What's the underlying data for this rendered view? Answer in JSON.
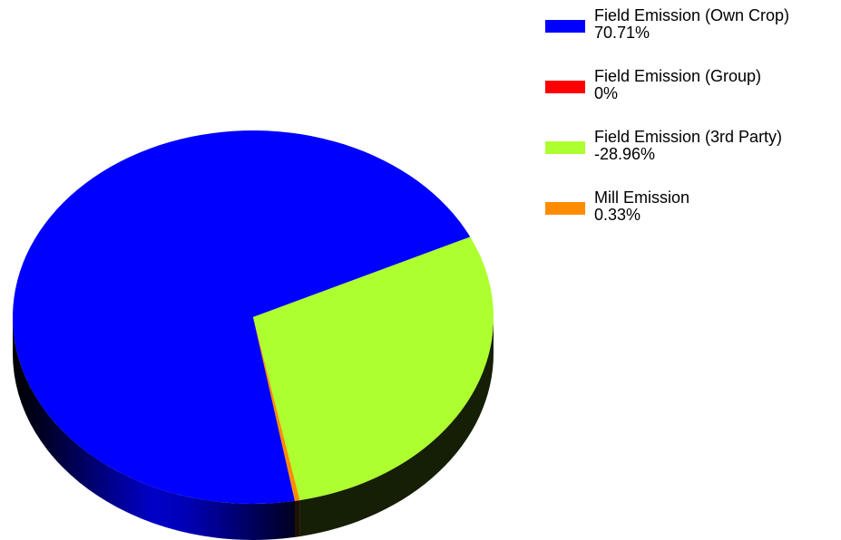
{
  "chart_data": {
    "type": "pie",
    "style": "3d",
    "legend_position": "right",
    "slices": [
      {
        "label": "Field Emission (Own Crop)",
        "percent_label": "70.71%",
        "value": 70.71,
        "color": "#0000FF"
      },
      {
        "label": "Field Emission (Group)",
        "percent_label": "0%",
        "value": 0,
        "color": "#FF0000"
      },
      {
        "label": "Field Emission (3rd Party)",
        "percent_label": "-28.96%",
        "value": -28.96,
        "color": "#ADFF2F"
      },
      {
        "label": "Mill Emission",
        "percent_label": "0.33%",
        "value": 0.33,
        "color": "#FF8C00"
      }
    ]
  }
}
